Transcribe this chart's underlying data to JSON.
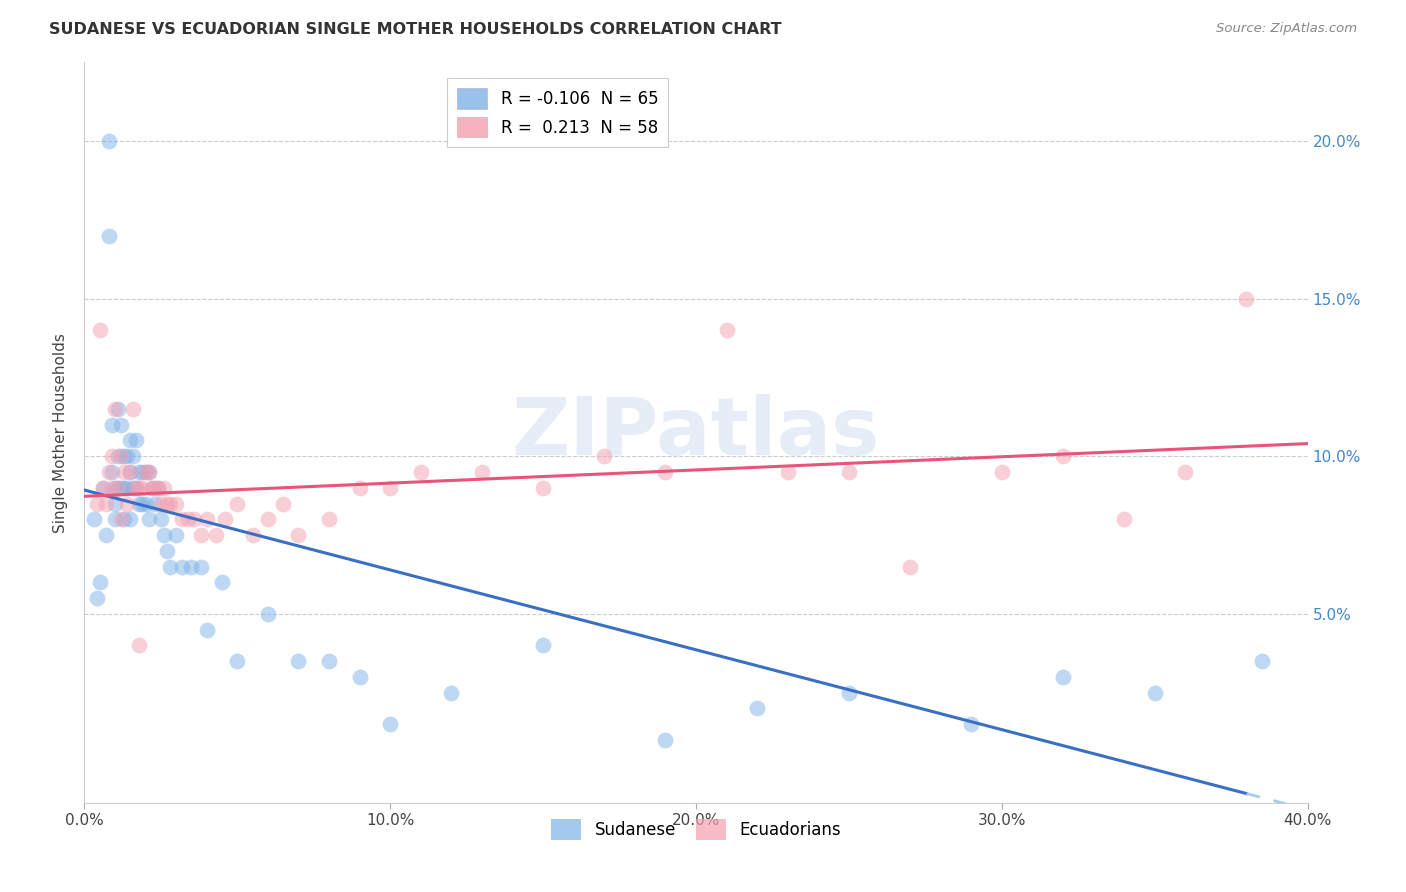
{
  "title": "SUDANESE VS ECUADORIAN SINGLE MOTHER HOUSEHOLDS CORRELATION CHART",
  "source": "Source: ZipAtlas.com",
  "ylabel": "Single Mother Households",
  "watermark": "ZIPatlas",
  "sudanese_color": "#7eb3e8",
  "ecuadorian_color": "#f4a0b0",
  "regression_blue": "#3a6fc4",
  "regression_pink": "#e8547a",
  "regression_blue_dashed": "#aacbee",
  "xlim": [
    0.0,
    0.4
  ],
  "ylim": [
    -0.01,
    0.225
  ],
  "yticks": [
    0.05,
    0.1,
    0.15,
    0.2
  ],
  "ytick_labels": [
    "5.0%",
    "10.0%",
    "15.0%",
    "20.0%"
  ],
  "xticks": [
    0.0,
    0.1,
    0.2,
    0.3,
    0.4
  ],
  "xtick_labels": [
    "0.0%",
    "10.0%",
    "20.0%",
    "30.0%",
    "40.0%"
  ],
  "sudanese_R": -0.106,
  "sudanese_N": 65,
  "ecuadorian_R": 0.213,
  "ecuadorian_N": 58,
  "sudanese_x": [
    0.003,
    0.004,
    0.005,
    0.006,
    0.007,
    0.008,
    0.008,
    0.009,
    0.009,
    0.01,
    0.01,
    0.01,
    0.011,
    0.011,
    0.011,
    0.012,
    0.012,
    0.013,
    0.013,
    0.013,
    0.014,
    0.014,
    0.015,
    0.015,
    0.015,
    0.016,
    0.016,
    0.017,
    0.017,
    0.018,
    0.018,
    0.019,
    0.019,
    0.02,
    0.02,
    0.021,
    0.021,
    0.022,
    0.023,
    0.024,
    0.025,
    0.026,
    0.027,
    0.028,
    0.03,
    0.032,
    0.035,
    0.038,
    0.04,
    0.045,
    0.05,
    0.06,
    0.07,
    0.08,
    0.09,
    0.1,
    0.12,
    0.15,
    0.19,
    0.22,
    0.25,
    0.29,
    0.32,
    0.35,
    0.385
  ],
  "sudanese_y": [
    0.08,
    0.055,
    0.06,
    0.09,
    0.075,
    0.2,
    0.17,
    0.11,
    0.095,
    0.09,
    0.085,
    0.08,
    0.115,
    0.1,
    0.09,
    0.11,
    0.09,
    0.1,
    0.09,
    0.08,
    0.1,
    0.09,
    0.105,
    0.095,
    0.08,
    0.1,
    0.09,
    0.105,
    0.09,
    0.095,
    0.085,
    0.095,
    0.085,
    0.095,
    0.085,
    0.095,
    0.08,
    0.09,
    0.085,
    0.09,
    0.08,
    0.075,
    0.07,
    0.065,
    0.075,
    0.065,
    0.065,
    0.065,
    0.045,
    0.06,
    0.035,
    0.05,
    0.035,
    0.035,
    0.03,
    0.015,
    0.025,
    0.04,
    0.01,
    0.02,
    0.025,
    0.015,
    0.03,
    0.025,
    0.035
  ],
  "ecuadorian_x": [
    0.004,
    0.006,
    0.007,
    0.008,
    0.009,
    0.01,
    0.011,
    0.012,
    0.013,
    0.014,
    0.015,
    0.016,
    0.017,
    0.018,
    0.019,
    0.02,
    0.021,
    0.022,
    0.023,
    0.024,
    0.025,
    0.026,
    0.027,
    0.028,
    0.03,
    0.032,
    0.034,
    0.036,
    0.038,
    0.04,
    0.043,
    0.046,
    0.05,
    0.055,
    0.06,
    0.065,
    0.07,
    0.08,
    0.09,
    0.1,
    0.11,
    0.13,
    0.15,
    0.17,
    0.19,
    0.21,
    0.23,
    0.25,
    0.27,
    0.3,
    0.32,
    0.34,
    0.36,
    0.38,
    0.005,
    0.009,
    0.012,
    0.018
  ],
  "ecuadorian_y": [
    0.085,
    0.09,
    0.085,
    0.095,
    0.1,
    0.115,
    0.09,
    0.1,
    0.095,
    0.085,
    0.095,
    0.115,
    0.09,
    0.09,
    0.09,
    0.095,
    0.095,
    0.09,
    0.09,
    0.09,
    0.085,
    0.09,
    0.085,
    0.085,
    0.085,
    0.08,
    0.08,
    0.08,
    0.075,
    0.08,
    0.075,
    0.08,
    0.085,
    0.075,
    0.08,
    0.085,
    0.075,
    0.08,
    0.09,
    0.09,
    0.095,
    0.095,
    0.09,
    0.1,
    0.095,
    0.14,
    0.095,
    0.095,
    0.065,
    0.095,
    0.1,
    0.08,
    0.095,
    0.15,
    0.14,
    0.09,
    0.08,
    0.04
  ]
}
